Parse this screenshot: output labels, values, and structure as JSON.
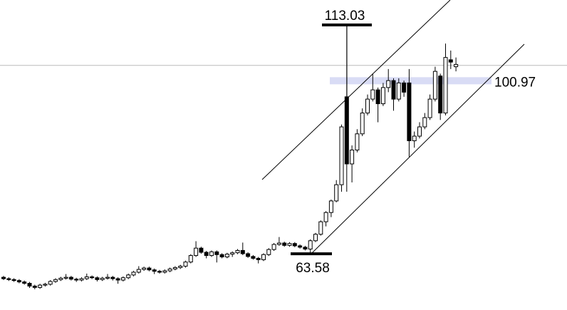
{
  "chart_data": {
    "type": "candlestick",
    "ylim": [
      51.43,
      118.42
    ],
    "ohlc": [
      [
        58.5,
        58.8,
        57.9,
        58.2
      ],
      [
        58.2,
        58.5,
        57.7,
        58.0
      ],
      [
        58.0,
        58.3,
        57.5,
        57.8
      ],
      [
        57.8,
        58.1,
        57.2,
        57.5
      ],
      [
        57.5,
        57.8,
        56.9,
        57.2
      ],
      [
        57.2,
        57.5,
        56.2,
        56.6
      ],
      [
        56.6,
        56.9,
        55.9,
        56.3
      ],
      [
        56.3,
        57.1,
        56.0,
        56.8
      ],
      [
        56.8,
        57.3,
        56.5,
        57.0
      ],
      [
        57.0,
        57.9,
        56.7,
        57.6
      ],
      [
        57.6,
        58.3,
        57.3,
        58.0
      ],
      [
        58.0,
        58.6,
        57.7,
        58.3
      ],
      [
        58.3,
        59.2,
        58.0,
        58.5
      ],
      [
        58.5,
        58.8,
        57.8,
        58.1
      ],
      [
        58.1,
        58.4,
        57.5,
        57.9
      ],
      [
        57.9,
        58.5,
        57.6,
        58.2
      ],
      [
        58.2,
        59.3,
        57.9,
        58.6
      ],
      [
        58.6,
        58.9,
        58.1,
        58.4
      ],
      [
        58.4,
        58.7,
        57.6,
        58.0
      ],
      [
        58.0,
        58.6,
        57.7,
        58.3
      ],
      [
        58.3,
        59.2,
        58.0,
        58.5
      ],
      [
        58.5,
        58.8,
        57.8,
        58.2
      ],
      [
        58.2,
        58.5,
        57.1,
        57.9
      ],
      [
        57.9,
        58.7,
        57.6,
        58.4
      ],
      [
        58.4,
        59.3,
        58.1,
        59.0
      ],
      [
        59.0,
        59.9,
        58.7,
        59.6
      ],
      [
        59.6,
        60.9,
        59.3,
        60.2
      ],
      [
        60.2,
        60.8,
        59.9,
        60.5
      ],
      [
        60.5,
        60.8,
        59.8,
        60.1
      ],
      [
        60.1,
        60.4,
        59.2,
        59.8
      ],
      [
        59.8,
        60.1,
        59.3,
        59.6
      ],
      [
        59.6,
        60.2,
        59.3,
        59.9
      ],
      [
        59.9,
        60.6,
        59.6,
        60.3
      ],
      [
        60.3,
        60.9,
        60.0,
        60.6
      ],
      [
        60.6,
        61.2,
        60.3,
        60.9
      ],
      [
        60.9,
        62.1,
        60.6,
        61.8
      ],
      [
        61.8,
        63.5,
        61.5,
        63.2
      ],
      [
        63.2,
        66.3,
        62.9,
        64.8
      ],
      [
        64.8,
        65.1,
        63.6,
        63.9
      ],
      [
        63.9,
        64.2,
        62.6,
        63.2
      ],
      [
        63.2,
        64.3,
        62.9,
        64.0
      ],
      [
        64.0,
        64.3,
        61.7,
        63.4
      ],
      [
        63.4,
        63.7,
        62.6,
        62.9
      ],
      [
        62.9,
        63.8,
        62.6,
        63.5
      ],
      [
        63.5,
        64.1,
        62.9,
        63.8
      ],
      [
        63.8,
        64.6,
        63.5,
        64.3
      ],
      [
        64.3,
        66.0,
        63.3,
        63.6
      ],
      [
        63.6,
        63.9,
        62.7,
        63.0
      ],
      [
        63.0,
        63.3,
        62.3,
        62.6
      ],
      [
        62.6,
        62.9,
        61.5,
        62.3
      ],
      [
        62.3,
        63.7,
        62.0,
        63.4
      ],
      [
        63.4,
        64.8,
        63.1,
        64.5
      ],
      [
        64.5,
        65.9,
        64.2,
        65.6
      ],
      [
        65.6,
        67.2,
        65.3,
        65.9
      ],
      [
        65.9,
        66.2,
        65.1,
        65.4
      ],
      [
        65.4,
        66.1,
        65.1,
        65.8
      ],
      [
        65.8,
        66.1,
        65.0,
        65.3
      ],
      [
        65.3,
        65.6,
        64.7,
        65.0
      ],
      [
        65.0,
        65.3,
        64.3,
        64.6
      ],
      [
        64.6,
        66.7,
        63.58,
        66.4
      ],
      [
        66.4,
        68.1,
        66.1,
        67.8
      ],
      [
        67.8,
        70.8,
        67.5,
        70.5
      ],
      [
        70.5,
        72.8,
        69.5,
        72.5
      ],
      [
        72.5,
        75.3,
        71.5,
        75.0
      ],
      [
        75.0,
        79.5,
        74.7,
        78.5
      ],
      [
        78.5,
        91.5,
        77.0,
        91.0
      ],
      [
        97.5,
        113.03,
        77.0,
        83.0
      ],
      [
        83.0,
        87.0,
        79.0,
        86.0
      ],
      [
        86.0,
        90.5,
        85.5,
        89.5
      ],
      [
        89.5,
        95.0,
        89.0,
        94.0
      ],
      [
        94.0,
        98.0,
        93.5,
        97.0
      ],
      [
        97.0,
        102.5,
        96.5,
        99.0
      ],
      [
        99.0,
        99.5,
        92.0,
        96.0
      ],
      [
        96.0,
        100.5,
        95.5,
        99.5
      ],
      [
        99.5,
        103.5,
        98.5,
        101.0
      ],
      [
        101.0,
        101.5,
        94.5,
        97.0
      ],
      [
        97.0,
        101.5,
        96.5,
        100.5
      ],
      [
        100.5,
        101.0,
        97.5,
        98.5
      ],
      [
        100.5,
        103.5,
        84.5,
        88.0
      ],
      [
        88.0,
        90.0,
        86.5,
        89.0
      ],
      [
        89.0,
        92.0,
        88.5,
        91.0
      ],
      [
        91.0,
        94.0,
        90.5,
        93.0
      ],
      [
        93.0,
        98.0,
        92.5,
        97.0
      ],
      [
        97.0,
        104.0,
        96.5,
        103.0
      ],
      [
        102.0,
        102.5,
        92.5,
        94.0
      ],
      [
        94.0,
        109.0,
        93.5,
        106.0
      ],
      [
        105.5,
        107.5,
        103.5,
        105.0
      ],
      [
        104.0,
        106.0,
        103.0,
        104.5
      ]
    ],
    "price_line": 104.3,
    "zone": {
      "value": 100.97,
      "label": "100.97"
    },
    "high_marker": {
      "value": 113.03,
      "label": "113.03"
    },
    "low_marker": {
      "value": 63.58,
      "label": "63.58"
    }
  }
}
